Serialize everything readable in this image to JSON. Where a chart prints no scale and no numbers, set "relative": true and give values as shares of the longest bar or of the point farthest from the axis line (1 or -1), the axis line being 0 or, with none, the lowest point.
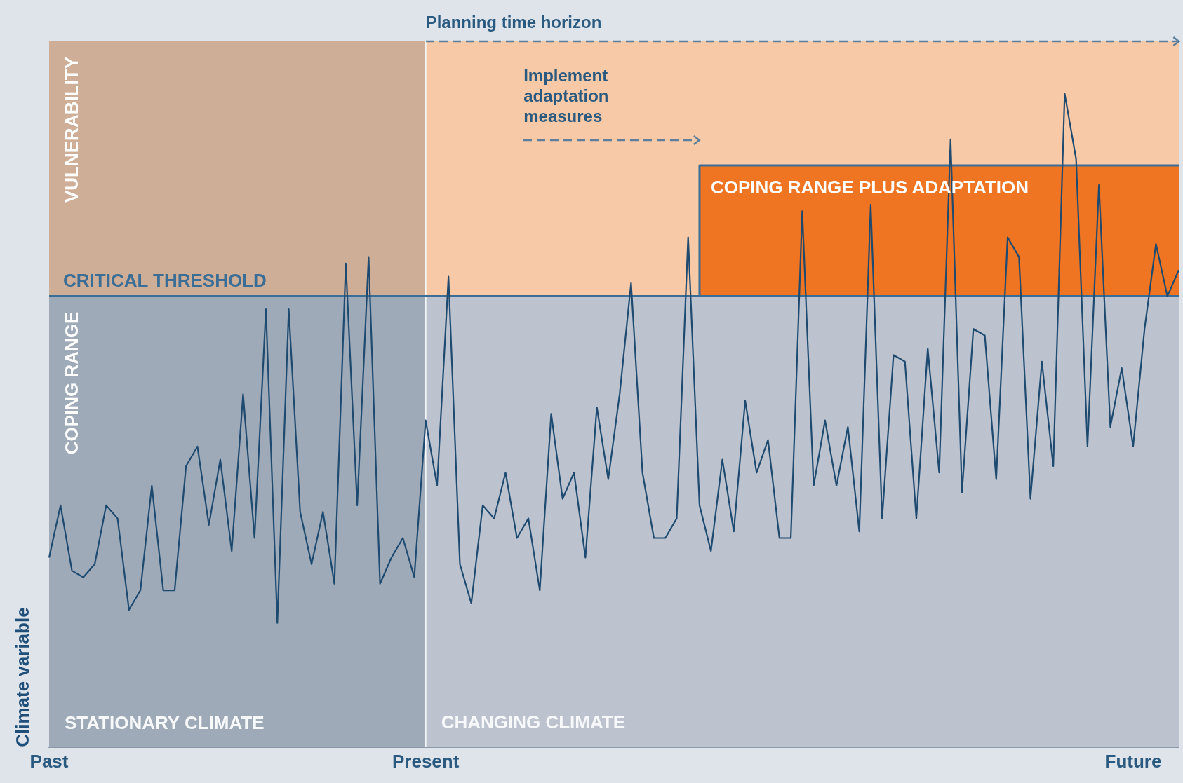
{
  "chart_data": {
    "type": "line",
    "relative": true,
    "ylabel": "Climate variable",
    "categories": [
      "Past",
      null,
      null,
      null,
      null,
      null,
      null,
      null,
      null,
      null,
      null,
      null,
      null,
      null,
      null,
      null,
      null,
      null,
      null,
      null,
      null,
      null,
      null,
      null,
      null,
      null,
      null,
      null,
      null,
      null,
      null,
      null,
      null,
      "Present",
      null,
      null,
      null,
      null,
      null,
      null,
      null,
      null,
      null,
      null,
      null,
      null,
      null,
      null,
      null,
      null,
      null,
      null,
      null,
      null,
      null,
      null,
      null,
      null,
      null,
      null,
      null,
      null,
      null,
      null,
      null,
      null,
      null,
      null,
      null,
      null,
      null,
      null,
      null,
      null,
      null,
      null,
      null,
      null,
      null,
      null,
      null,
      null,
      null,
      null,
      null,
      null,
      null,
      null,
      null,
      null,
      null,
      null,
      null,
      null,
      null,
      "Future",
      null,
      null,
      null,
      null
    ],
    "series": [
      {
        "color": "#1e4a70",
        "values": [
          0.29,
          0.37,
          0.27,
          0.26,
          0.28,
          0.37,
          0.35,
          0.21,
          0.24,
          0.4,
          0.24,
          0.24,
          0.43,
          0.46,
          0.34,
          0.44,
          0.3,
          0.54,
          0.32,
          0.67,
          0.19,
          0.67,
          0.36,
          0.28,
          0.36,
          0.25,
          0.74,
          0.37,
          0.75,
          0.25,
          0.29,
          0.32,
          0.26,
          0.5,
          0.4,
          0.72,
          0.28,
          0.22,
          0.37,
          0.35,
          0.42,
          0.32,
          0.35,
          0.24,
          0.51,
          0.38,
          0.42,
          0.29,
          0.52,
          0.41,
          0.54,
          0.71,
          0.42,
          0.32,
          0.32,
          0.35,
          0.78,
          0.37,
          0.3,
          0.44,
          0.33,
          0.53,
          0.42,
          0.47,
          0.32,
          0.32,
          0.82,
          0.4,
          0.5,
          0.4,
          0.49,
          0.33,
          0.83,
          0.35,
          0.6,
          0.59,
          0.35,
          0.61,
          0.42,
          0.93,
          0.39,
          0.64,
          0.63,
          0.41,
          0.78,
          0.75,
          0.38,
          0.59,
          0.43,
          1,
          0.9,
          0.46,
          0.86,
          0.49,
          0.58,
          0.46,
          0.64,
          0.77,
          0.69,
          0.73
        ]
      },
      {
        "type": "area",
        "name": "COPING RANGE PLUS ADAPTATION",
        "color": "#f07522",
        "values": [
          null,
          null,
          null,
          null,
          null,
          null,
          null,
          null,
          null,
          null,
          null,
          null,
          null,
          null,
          null,
          null,
          null,
          null,
          null,
          null,
          null,
          null,
          null,
          null,
          null,
          null,
          null,
          null,
          null,
          null,
          null,
          null,
          null,
          null,
          null,
          null,
          null,
          null,
          null,
          null,
          null,
          null,
          null,
          null,
          null,
          null,
          null,
          null,
          null,
          null,
          null,
          null,
          null,
          null,
          null,
          null,
          null,
          0.89,
          0.89,
          0.89,
          0.89,
          0.89,
          0.89,
          0.89,
          0.89,
          0.89,
          0.89,
          0.89,
          0.89,
          0.89,
          0.89,
          0.89,
          0.89,
          0.89,
          0.89,
          0.89,
          0.89,
          0.89,
          0.89,
          0.89,
          0.89,
          0.89,
          0.89,
          0.89,
          0.89,
          0.89,
          0.89,
          0.89,
          0.89,
          0.89,
          0.89,
          0.89,
          0.89,
          0.89,
          0.89,
          0.89,
          0.89,
          0.89,
          0.89,
          0.89
        ]
      },
      {
        "type": "step",
        "color": "#3a6e96",
        "values": [
          0.69,
          0.69,
          0.69,
          0.69,
          0.69,
          0.69,
          0.69,
          0.69,
          0.69,
          0.69,
          0.69,
          0.69,
          0.69,
          0.69,
          0.69,
          0.69,
          0.69,
          0.69,
          0.69,
          0.69,
          0.69,
          0.69,
          0.69,
          0.69,
          0.69,
          0.69,
          0.69,
          0.69,
          0.69,
          0.69,
          0.69,
          0.69,
          0.69,
          0.69,
          0.69,
          0.69,
          0.69,
          0.69,
          0.69,
          0.69,
          0.69,
          0.69,
          0.69,
          0.69,
          0.69,
          0.69,
          0.69,
          0.69,
          0.69,
          0.69,
          0.69,
          0.69,
          0.69,
          0.69,
          0.69,
          0.69,
          0.69,
          0.89,
          0.89,
          0.89,
          0.89,
          0.89,
          0.89,
          0.89,
          0.89,
          0.89,
          0.89,
          0.89,
          0.89,
          0.89,
          0.89,
          0.89,
          0.89,
          0.89,
          0.89,
          0.89,
          0.89,
          0.89,
          0.89,
          0.89,
          0.89,
          0.89,
          0.89,
          0.89,
          0.89,
          0.89,
          0.89,
          0.89,
          0.89,
          0.89,
          0.89,
          0.89,
          0.89,
          0.89,
          0.89,
          0.89,
          0.89,
          0.89,
          0.89,
          0.89
        ]
      }
    ],
    "bands": [
      {
        "axis": "x",
        "from": "Past",
        "to": "Present",
        "label": "STATIONARY CLIMATE",
        "color": "#2e4660"
      },
      {
        "axis": "y",
        "from": 0.69,
        "to": 1.08,
        "label": "VULNERABILITY",
        "color": "#f8c9a6"
      },
      {
        "axis": "y",
        "from": 0,
        "to": 0.69,
        "label": "COPING RANGE",
        "color": "#bcc3cf"
      }
    ],
    "ref_lines": [
      {
        "axis": "y",
        "value": 0.69,
        "label": "CRITICAL THRESHOLD",
        "color": "#3a6e96"
      }
    ],
    "annotations": [
      "Planning time horizon",
      "Implement adaptation measures",
      "CHANGING CLIMATE"
    ]
  }
}
